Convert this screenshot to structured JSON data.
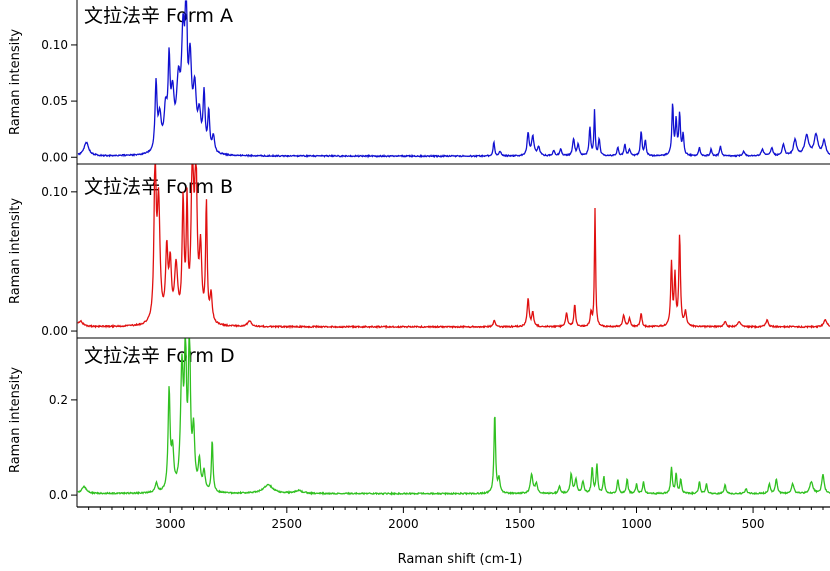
{
  "chart_data": [
    {
      "type": "line",
      "title": "文拉法辛 Form A",
      "ylabel": "Raman intensity",
      "xlabel": "",
      "xlim": [
        3400,
        170
      ],
      "ylim": [
        -0.006,
        0.14
      ],
      "yticks": [
        0.0,
        0.05,
        0.1
      ],
      "ytick_labels": [
        "0.00",
        "0.05",
        "0.10"
      ],
      "color": "#1010d0",
      "baseline": 0.001,
      "peaks": [
        {
          "x": 3360,
          "y": 0.012,
          "w": 12
        },
        {
          "x": 3061,
          "y": 0.06,
          "w": 5
        },
        {
          "x": 3045,
          "y": 0.03,
          "w": 8
        },
        {
          "x": 3020,
          "y": 0.035,
          "w": 8
        },
        {
          "x": 3005,
          "y": 0.072,
          "w": 5
        },
        {
          "x": 2990,
          "y": 0.045,
          "w": 8
        },
        {
          "x": 2965,
          "y": 0.055,
          "w": 10
        },
        {
          "x": 2945,
          "y": 0.095,
          "w": 8
        },
        {
          "x": 2932,
          "y": 0.145,
          "w": 4
        },
        {
          "x": 2915,
          "y": 0.075,
          "w": 8
        },
        {
          "x": 2895,
          "y": 0.05,
          "w": 8
        },
        {
          "x": 2875,
          "y": 0.03,
          "w": 8
        },
        {
          "x": 2855,
          "y": 0.05,
          "w": 5
        },
        {
          "x": 2835,
          "y": 0.035,
          "w": 5
        },
        {
          "x": 2815,
          "y": 0.015,
          "w": 6
        },
        {
          "x": 1612,
          "y": 0.012,
          "w": 4
        },
        {
          "x": 1585,
          "y": 0.004,
          "w": 5
        },
        {
          "x": 1465,
          "y": 0.02,
          "w": 5
        },
        {
          "x": 1445,
          "y": 0.017,
          "w": 6
        },
        {
          "x": 1420,
          "y": 0.008,
          "w": 6
        },
        {
          "x": 1355,
          "y": 0.005,
          "w": 5
        },
        {
          "x": 1325,
          "y": 0.006,
          "w": 5
        },
        {
          "x": 1270,
          "y": 0.015,
          "w": 5
        },
        {
          "x": 1250,
          "y": 0.01,
          "w": 5
        },
        {
          "x": 1200,
          "y": 0.025,
          "w": 4
        },
        {
          "x": 1180,
          "y": 0.04,
          "w": 3
        },
        {
          "x": 1160,
          "y": 0.015,
          "w": 4
        },
        {
          "x": 1080,
          "y": 0.008,
          "w": 4
        },
        {
          "x": 1050,
          "y": 0.01,
          "w": 4
        },
        {
          "x": 1030,
          "y": 0.006,
          "w": 4
        },
        {
          "x": 980,
          "y": 0.022,
          "w": 4
        },
        {
          "x": 962,
          "y": 0.014,
          "w": 4
        },
        {
          "x": 845,
          "y": 0.045,
          "w": 4
        },
        {
          "x": 830,
          "y": 0.03,
          "w": 4
        },
        {
          "x": 815,
          "y": 0.036,
          "w": 4
        },
        {
          "x": 800,
          "y": 0.018,
          "w": 4
        },
        {
          "x": 730,
          "y": 0.008,
          "w": 4
        },
        {
          "x": 680,
          "y": 0.006,
          "w": 4
        },
        {
          "x": 640,
          "y": 0.009,
          "w": 4
        },
        {
          "x": 540,
          "y": 0.004,
          "w": 6
        },
        {
          "x": 460,
          "y": 0.006,
          "w": 6
        },
        {
          "x": 420,
          "y": 0.007,
          "w": 6
        },
        {
          "x": 370,
          "y": 0.01,
          "w": 6
        },
        {
          "x": 320,
          "y": 0.014,
          "w": 8
        },
        {
          "x": 270,
          "y": 0.018,
          "w": 10
        },
        {
          "x": 230,
          "y": 0.018,
          "w": 10
        },
        {
          "x": 195,
          "y": 0.013,
          "w": 8
        }
      ]
    },
    {
      "type": "line",
      "title": "文拉法辛 Form B",
      "ylabel": "Raman intensity",
      "xlabel": "",
      "xlim": [
        3400,
        170
      ],
      "ylim": [
        -0.005,
        0.12
      ],
      "yticks": [
        0.0,
        0.1
      ],
      "ytick_labels": [
        "0.00",
        "0.10"
      ],
      "color": "#e01010",
      "baseline": 0.003,
      "peaks": [
        {
          "x": 3385,
          "y": 0.004,
          "w": 12
        },
        {
          "x": 3065,
          "y": 0.12,
          "w": 5
        },
        {
          "x": 3050,
          "y": 0.085,
          "w": 7
        },
        {
          "x": 3015,
          "y": 0.05,
          "w": 6
        },
        {
          "x": 3000,
          "y": 0.04,
          "w": 6
        },
        {
          "x": 2975,
          "y": 0.04,
          "w": 8
        },
        {
          "x": 2945,
          "y": 0.085,
          "w": 5
        },
        {
          "x": 2928,
          "y": 0.08,
          "w": 4
        },
        {
          "x": 2905,
          "y": 0.118,
          "w": 6
        },
        {
          "x": 2890,
          "y": 0.11,
          "w": 6
        },
        {
          "x": 2870,
          "y": 0.05,
          "w": 6
        },
        {
          "x": 2845,
          "y": 0.085,
          "w": 4
        },
        {
          "x": 2825,
          "y": 0.02,
          "w": 6
        },
        {
          "x": 2660,
          "y": 0.004,
          "w": 10
        },
        {
          "x": 1610,
          "y": 0.005,
          "w": 5
        },
        {
          "x": 1465,
          "y": 0.02,
          "w": 5
        },
        {
          "x": 1445,
          "y": 0.01,
          "w": 5
        },
        {
          "x": 1300,
          "y": 0.01,
          "w": 5
        },
        {
          "x": 1265,
          "y": 0.016,
          "w": 4
        },
        {
          "x": 1195,
          "y": 0.01,
          "w": 4
        },
        {
          "x": 1178,
          "y": 0.085,
          "w": 3
        },
        {
          "x": 1055,
          "y": 0.008,
          "w": 5
        },
        {
          "x": 1030,
          "y": 0.006,
          "w": 5
        },
        {
          "x": 980,
          "y": 0.01,
          "w": 4
        },
        {
          "x": 850,
          "y": 0.045,
          "w": 4
        },
        {
          "x": 835,
          "y": 0.035,
          "w": 4
        },
        {
          "x": 815,
          "y": 0.065,
          "w": 4
        },
        {
          "x": 790,
          "y": 0.01,
          "w": 5
        },
        {
          "x": 620,
          "y": 0.004,
          "w": 5
        },
        {
          "x": 560,
          "y": 0.004,
          "w": 6
        },
        {
          "x": 440,
          "y": 0.005,
          "w": 6
        },
        {
          "x": 190,
          "y": 0.005,
          "w": 8
        }
      ]
    },
    {
      "type": "line",
      "title": "文拉法辛 Form D",
      "ylabel": "Raman intensity",
      "xlabel": "Raman shift (cm-1)",
      "xlim": [
        3400,
        170
      ],
      "ylim": [
        -0.025,
        0.33
      ],
      "yticks": [
        0.0,
        0.2
      ],
      "ytick_labels": [
        "0.0",
        "0.2"
      ],
      "color": "#30c020",
      "baseline": 0.003,
      "peaks": [
        {
          "x": 3370,
          "y": 0.015,
          "w": 12
        },
        {
          "x": 3060,
          "y": 0.02,
          "w": 6
        },
        {
          "x": 3005,
          "y": 0.21,
          "w": 5
        },
        {
          "x": 2990,
          "y": 0.08,
          "w": 6
        },
        {
          "x": 2950,
          "y": 0.25,
          "w": 7
        },
        {
          "x": 2935,
          "y": 0.29,
          "w": 5
        },
        {
          "x": 2918,
          "y": 0.33,
          "w": 5
        },
        {
          "x": 2900,
          "y": 0.12,
          "w": 6
        },
        {
          "x": 2875,
          "y": 0.06,
          "w": 6
        },
        {
          "x": 2855,
          "y": 0.04,
          "w": 6
        },
        {
          "x": 2820,
          "y": 0.11,
          "w": 4
        },
        {
          "x": 2580,
          "y": 0.018,
          "w": 25
        },
        {
          "x": 2450,
          "y": 0.006,
          "w": 20
        },
        {
          "x": 1608,
          "y": 0.17,
          "w": 4
        },
        {
          "x": 1590,
          "y": 0.03,
          "w": 5
        },
        {
          "x": 1450,
          "y": 0.04,
          "w": 6
        },
        {
          "x": 1430,
          "y": 0.02,
          "w": 6
        },
        {
          "x": 1330,
          "y": 0.015,
          "w": 5
        },
        {
          "x": 1280,
          "y": 0.04,
          "w": 5
        },
        {
          "x": 1260,
          "y": 0.03,
          "w": 5
        },
        {
          "x": 1230,
          "y": 0.025,
          "w": 5
        },
        {
          "x": 1190,
          "y": 0.055,
          "w": 4
        },
        {
          "x": 1170,
          "y": 0.06,
          "w": 4
        },
        {
          "x": 1140,
          "y": 0.035,
          "w": 4
        },
        {
          "x": 1080,
          "y": 0.03,
          "w": 4
        },
        {
          "x": 1040,
          "y": 0.03,
          "w": 4
        },
        {
          "x": 1000,
          "y": 0.02,
          "w": 4
        },
        {
          "x": 970,
          "y": 0.025,
          "w": 4
        },
        {
          "x": 850,
          "y": 0.055,
          "w": 4
        },
        {
          "x": 830,
          "y": 0.04,
          "w": 4
        },
        {
          "x": 810,
          "y": 0.03,
          "w": 4
        },
        {
          "x": 730,
          "y": 0.025,
          "w": 4
        },
        {
          "x": 700,
          "y": 0.02,
          "w": 4
        },
        {
          "x": 620,
          "y": 0.02,
          "w": 4
        },
        {
          "x": 530,
          "y": 0.01,
          "w": 5
        },
        {
          "x": 430,
          "y": 0.02,
          "w": 5
        },
        {
          "x": 400,
          "y": 0.03,
          "w": 5
        },
        {
          "x": 330,
          "y": 0.02,
          "w": 6
        },
        {
          "x": 250,
          "y": 0.025,
          "w": 8
        },
        {
          "x": 200,
          "y": 0.04,
          "w": 6
        }
      ]
    }
  ],
  "x_axis": {
    "label": "Raman shift (cm-1)",
    "ticks": [
      3000,
      2500,
      2000,
      1500,
      1000,
      500
    ],
    "tick_labels": [
      "3000",
      "2500",
      "2000",
      "1500",
      "1000",
      "500"
    ]
  }
}
